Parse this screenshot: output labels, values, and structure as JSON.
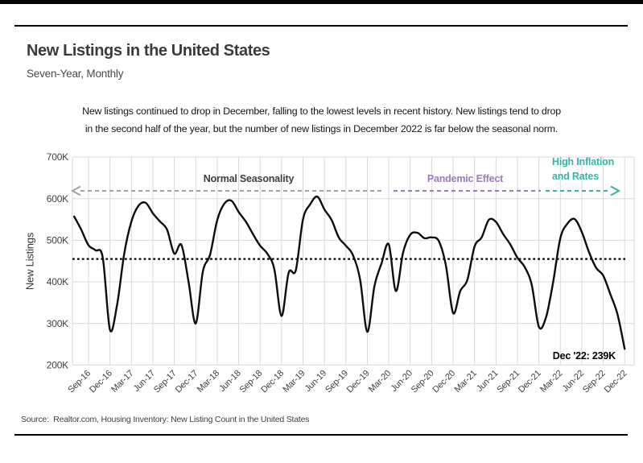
{
  "header": {
    "title": "New Listings in the United States",
    "subtitle": "Seven-Year, Monthly"
  },
  "annotation": {
    "line1": "New listings continued to drop in December, falling to the lowest levels in recent history. New listings tend to drop",
    "line2": "in the second half of the year, but the number of new listings in December 2022 is far below the seasonal norm."
  },
  "footer": {
    "source": "Source:  Realtor.com, Housing Inventory: New Listing Count in the United States"
  },
  "colors": {
    "accent_purple": "#9b7ac1",
    "accent_teal": "#39b3a3",
    "arrow_gray": "#a3a3a3",
    "grid": "#d9d9d9",
    "line": "#0d0d0d",
    "average_line": "#000000"
  },
  "chart_data": {
    "type": "line",
    "title": "New Listings in the United States",
    "subtitle": "Seven-Year, Monthly",
    "xlabel": "",
    "ylabel": "New Listings",
    "unit": "thousands (K)",
    "grid": true,
    "legend_position": "none",
    "ylim": [
      200,
      700
    ],
    "y_ticks": [
      700,
      600,
      500,
      400,
      300,
      200
    ],
    "y_tick_labels": [
      "700K",
      "600K",
      "500K",
      "400K",
      "300K",
      "200K"
    ],
    "x_tick_labels": [
      "Sep-16",
      "Dec-16",
      "Mar-17",
      "Jun-17",
      "Sep-17",
      "Dec-17",
      "Mar-18",
      "Jun-18",
      "Sep-18",
      "Dec-18",
      "Mar-19",
      "Jun-19",
      "Sep-19",
      "Dec-19",
      "Mar-20",
      "Jun-20",
      "Sep-20",
      "Dec-20",
      "Mar-21",
      "Jun-21",
      "Sep-21",
      "Dec-21",
      "Mar-22",
      "Jun-22",
      "Sep-22",
      "Dec-22"
    ],
    "x": [
      "Jul-16",
      "Aug-16",
      "Sep-16",
      "Oct-16",
      "Nov-16",
      "Dec-16",
      "Jan-17",
      "Feb-17",
      "Mar-17",
      "Apr-17",
      "May-17",
      "Jun-17",
      "Jul-17",
      "Aug-17",
      "Sep-17",
      "Oct-17",
      "Nov-17",
      "Dec-17",
      "Jan-18",
      "Feb-18",
      "Mar-18",
      "Apr-18",
      "May-18",
      "Jun-18",
      "Jul-18",
      "Aug-18",
      "Sep-18",
      "Oct-18",
      "Nov-18",
      "Dec-18",
      "Jan-19",
      "Feb-19",
      "Mar-19",
      "Apr-19",
      "May-19",
      "Jun-19",
      "Jul-19",
      "Aug-19",
      "Sep-19",
      "Oct-19",
      "Nov-19",
      "Dec-19",
      "Jan-20",
      "Feb-20",
      "Mar-20",
      "Apr-20",
      "May-20",
      "Jun-20",
      "Jul-20",
      "Aug-20",
      "Sep-20",
      "Oct-20",
      "Nov-20",
      "Dec-20",
      "Jan-21",
      "Feb-21",
      "Mar-21",
      "Apr-21",
      "May-21",
      "Jun-21",
      "Jul-21",
      "Aug-21",
      "Sep-21",
      "Oct-21",
      "Nov-21",
      "Dec-21",
      "Jan-22",
      "Feb-22",
      "Mar-22",
      "Apr-22",
      "May-22",
      "Jun-22",
      "Jul-22",
      "Aug-22",
      "Sep-22",
      "Oct-22",
      "Nov-22",
      "Dec-22"
    ],
    "values": [
      557,
      525,
      488,
      476,
      458,
      285,
      345,
      468,
      545,
      583,
      590,
      565,
      545,
      525,
      468,
      489,
      400,
      300,
      425,
      465,
      548,
      588,
      595,
      568,
      545,
      515,
      487,
      468,
      430,
      318,
      422,
      428,
      550,
      586,
      605,
      574,
      549,
      507,
      487,
      464,
      405,
      280,
      390,
      445,
      490,
      378,
      470,
      513,
      518,
      505,
      507,
      498,
      439,
      325,
      378,
      405,
      485,
      507,
      549,
      544,
      515,
      490,
      458,
      436,
      393,
      292,
      315,
      400,
      505,
      540,
      551,
      520,
      472,
      434,
      415,
      370,
      322,
      239
    ],
    "average_line_value": 455,
    "annotations": {
      "normal_seasonality": "Normal Seasonality",
      "pandemic_effect": "Pandemic Effect",
      "high_inflation_line1": "High Inflation",
      "high_inflation_line2": "and Rates",
      "last_point": "Dec '22: 239K"
    }
  }
}
